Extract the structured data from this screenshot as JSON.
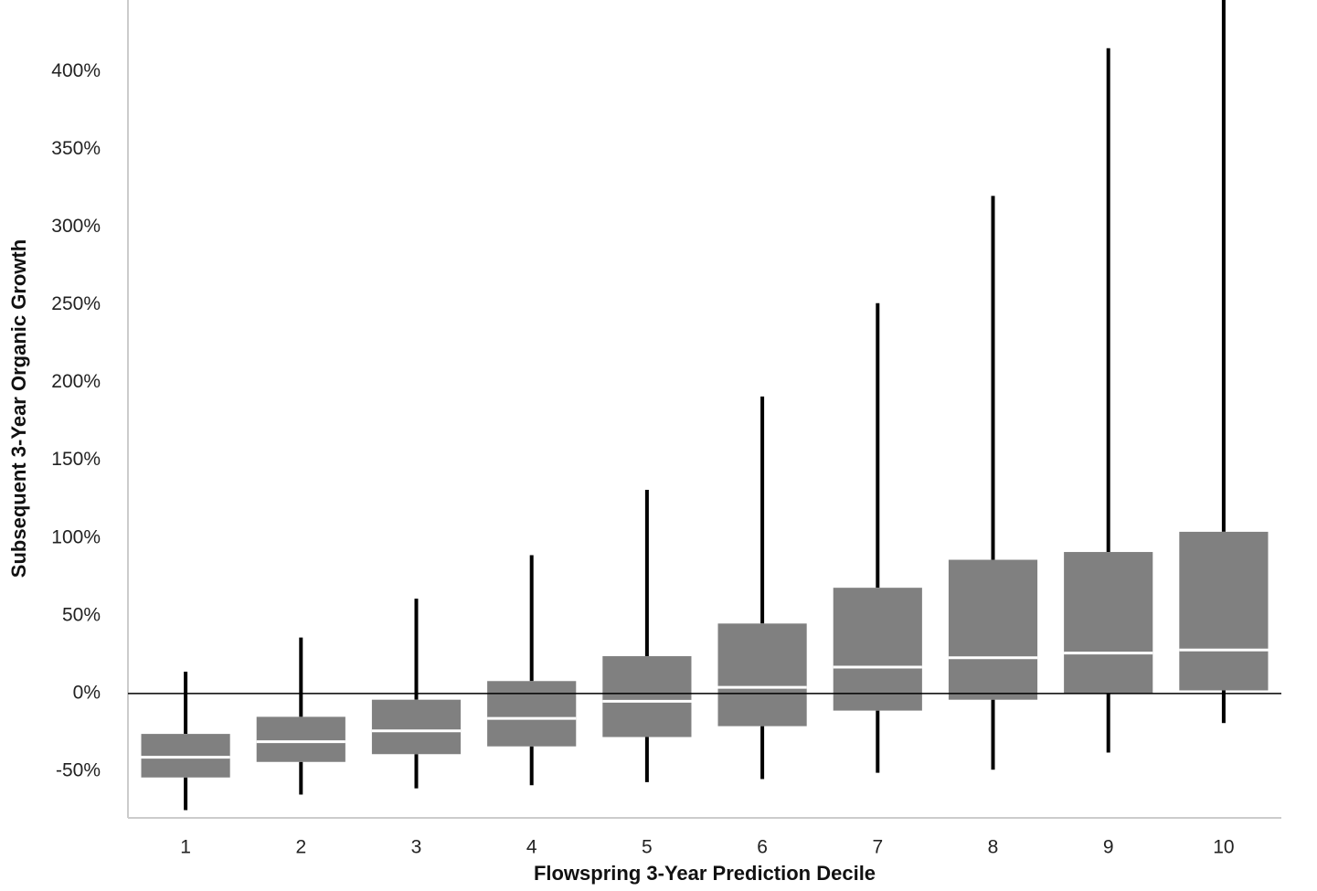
{
  "chart_data": {
    "type": "box",
    "x_label": "Flowspring 3-Year Prediction Decile",
    "y_label": "Subsequent 3-Year Organic Growth",
    "categories": [
      "1",
      "2",
      "3",
      "4",
      "5",
      "6",
      "7",
      "8",
      "9",
      "10"
    ],
    "high": [
      14,
      36,
      61,
      89,
      131,
      191,
      251,
      320,
      415,
      446
    ],
    "q3": [
      -26,
      -15,
      -4,
      8,
      24,
      45,
      68,
      86,
      91,
      104
    ],
    "median": [
      -41,
      -31,
      -24,
      -16,
      -5,
      4,
      17,
      23,
      26,
      28
    ],
    "q1": [
      -54,
      -44,
      -39,
      -34,
      -28,
      -21,
      -11,
      -4,
      0,
      2
    ],
    "low": [
      -75,
      -65,
      -61,
      -59,
      -57,
      -55,
      -51,
      -49,
      -38,
      -19
    ],
    "color": "#808080",
    "ylim": [
      -80,
      446
    ],
    "yticks": [
      {
        "value": -50,
        "label": "-50%"
      },
      {
        "value": 0,
        "label": "0%"
      },
      {
        "value": 50,
        "label": "50%"
      },
      {
        "value": 100,
        "label": "100%"
      },
      {
        "value": 150,
        "label": "150%"
      },
      {
        "value": 200,
        "label": "200%"
      },
      {
        "value": 250,
        "label": "250%"
      },
      {
        "value": 300,
        "label": "300%"
      },
      {
        "value": 350,
        "label": "350%"
      },
      {
        "value": 400,
        "label": "400%"
      }
    ]
  }
}
